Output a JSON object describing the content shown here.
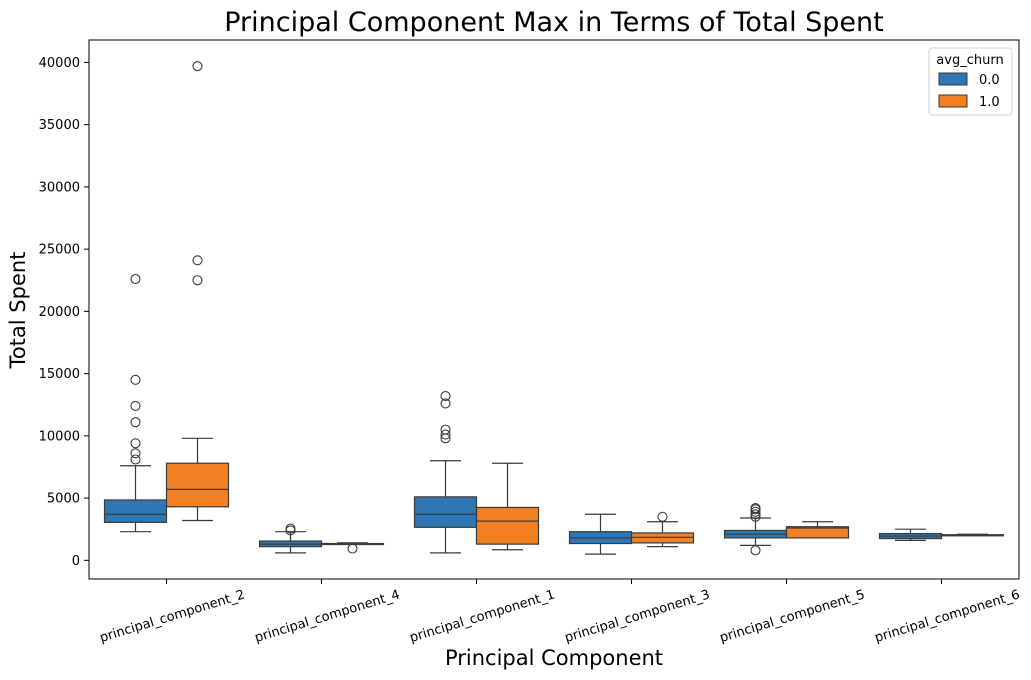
{
  "chart_data": {
    "type": "box",
    "title": "Principal Component Max in Terms of Total Spent",
    "xlabel": "Principal Component",
    "ylabel": "Total Spent",
    "ylim": [
      -1500,
      41800
    ],
    "yticks": [
      0,
      5000,
      10000,
      15000,
      20000,
      25000,
      30000,
      35000,
      40000
    ],
    "categories": [
      "principal_component_2",
      "principal_component_4",
      "principal_component_1",
      "principal_component_3",
      "principal_component_5",
      "principal_component_6"
    ],
    "legend": {
      "title": "avg_churn",
      "position": "top-right"
    },
    "grid": false,
    "series": [
      {
        "name": "0.0",
        "color": "#2f77b4",
        "boxes": [
          {
            "whisker_low": 2300,
            "q1": 3050,
            "median": 3700,
            "q3": 4850,
            "whisker_high": 7600,
            "outliers": [
              8100,
              8600,
              9400,
              11100,
              12400,
              14500,
              22600
            ]
          },
          {
            "whisker_low": 600,
            "q1": 1100,
            "median": 1300,
            "q3": 1550,
            "whisker_high": 2300,
            "outliers": [
              2400,
              2550
            ]
          },
          {
            "whisker_low": 600,
            "q1": 2650,
            "median": 3700,
            "q3": 5100,
            "whisker_high": 8000,
            "outliers": [
              9800,
              10100,
              10500,
              12600,
              13200
            ]
          },
          {
            "whisker_low": 500,
            "q1": 1350,
            "median": 1800,
            "q3": 2300,
            "whisker_high": 3700,
            "outliers": []
          },
          {
            "whisker_low": 1200,
            "q1": 1800,
            "median": 2100,
            "q3": 2400,
            "whisker_high": 3400,
            "outliers": [
              800,
              3500,
              3700,
              3900,
              4100,
              4200
            ]
          },
          {
            "whisker_low": 1600,
            "q1": 1750,
            "median": 1950,
            "q3": 2150,
            "whisker_high": 2500,
            "outliers": []
          }
        ]
      },
      {
        "name": "1.0",
        "color": "#f08022",
        "boxes": [
          {
            "whisker_low": 3200,
            "q1": 4300,
            "median": 5700,
            "q3": 7800,
            "whisker_high": 9800,
            "outliers": [
              22500,
              24100,
              39700
            ]
          },
          {
            "whisker_low": 1300,
            "q1": 1300,
            "median": 1300,
            "q3": 1350,
            "whisker_high": 1400,
            "outliers": [
              950
            ]
          },
          {
            "whisker_low": 850,
            "q1": 1300,
            "median": 3150,
            "q3": 4250,
            "whisker_high": 7800,
            "outliers": []
          },
          {
            "whisker_low": 1100,
            "q1": 1400,
            "median": 1850,
            "q3": 2200,
            "whisker_high": 3100,
            "outliers": [
              3500
            ]
          },
          {
            "whisker_low": 1800,
            "q1": 1800,
            "median": 2600,
            "q3": 2700,
            "whisker_high": 3100,
            "outliers": []
          },
          {
            "whisker_low": 2000,
            "q1": 2000,
            "median": 2050,
            "q3": 2050,
            "whisker_high": 2100,
            "outliers": []
          }
        ]
      }
    ]
  }
}
